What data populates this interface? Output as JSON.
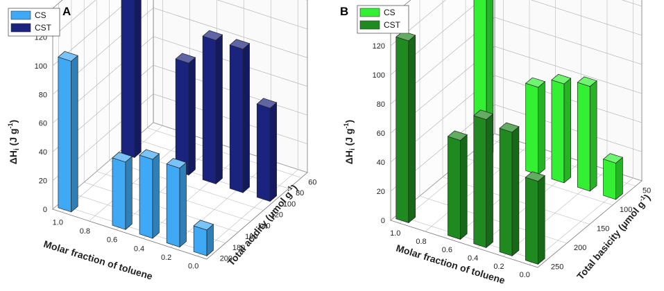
{
  "chart_data": [
    {
      "panel_label": "A",
      "type": "bar3d",
      "z_label": "ΔHi (J g-1)",
      "z_label_main": "ΔH",
      "z_label_sub": "i",
      "z_label_unit": " (J g",
      "z_label_sup": "-1",
      "z_label_close": ")",
      "x_label": "Molar fraction of toluene",
      "y_label": "Total acidity (μmol g-1)",
      "y_label_main": "Total acidity (μmol g",
      "y_label_sup": "-1",
      "y_label_close": ")",
      "x_ticks": [
        "1.0",
        "0.8",
        "0.6",
        "0.4",
        "0.2",
        "0.0"
      ],
      "x_tick_values": [
        1.0,
        0.8,
        0.6,
        0.4,
        0.2,
        0.0
      ],
      "y_ticks": [
        "200",
        "180",
        "160",
        "140",
        "120",
        "100",
        "80",
        "60"
      ],
      "y_tick_values": [
        200,
        180,
        160,
        140,
        120,
        100,
        80,
        60
      ],
      "z_ticks": [
        "0",
        "20",
        "40",
        "60",
        "80",
        "100",
        "120"
      ],
      "z_tick_values": [
        0,
        20,
        40,
        60,
        80,
        100,
        120
      ],
      "zlim": [
        0,
        140
      ],
      "legend": [
        {
          "name": "CS",
          "color": "#3fa9f5"
        },
        {
          "name": "CST",
          "color": "#1a237e"
        }
      ],
      "series": [
        {
          "name": "CS",
          "color": "#3fa9f5",
          "points": [
            {
              "x": 1.0,
              "y": 200,
              "value": 105
            },
            {
              "x": 0.6,
              "y": 200,
              "value": 47
            },
            {
              "x": 0.4,
              "y": 200,
              "value": 55
            },
            {
              "x": 0.2,
              "y": 200,
              "value": 55
            },
            {
              "x": 0.0,
              "y": 200,
              "value": 18
            }
          ]
        },
        {
          "name": "CST",
          "color": "#1a237e",
          "points": [
            {
              "x": 1.0,
              "y": 100,
              "value": 125
            },
            {
              "x": 0.6,
              "y": 100,
              "value": 78
            },
            {
              "x": 0.4,
              "y": 100,
              "value": 100
            },
            {
              "x": 0.2,
              "y": 100,
              "value": 100
            },
            {
              "x": 0.0,
              "y": 100,
              "value": 65
            }
          ]
        }
      ]
    },
    {
      "panel_label": "B",
      "type": "bar3d",
      "z_label": "ΔHi (J g-1)",
      "z_label_main": "ΔH",
      "z_label_sub": "i",
      "z_label_unit": " (J g",
      "z_label_sup": "-1",
      "z_label_close": ")",
      "x_label": "Molar fraction of toluene",
      "y_label": "Total basicity (μmol g-1)",
      "y_label_main": "Total basicity (μmol g",
      "y_label_sup": "-1",
      "y_label_close": ")",
      "x_ticks": [
        "1.0",
        "0.8",
        "0.6",
        "0.4",
        "0.2",
        "0.0"
      ],
      "x_tick_values": [
        1.0,
        0.8,
        0.6,
        0.4,
        0.2,
        0.0
      ],
      "y_ticks": [
        "250",
        "200",
        "150",
        "100",
        "50"
      ],
      "y_tick_values": [
        250,
        200,
        150,
        100,
        50
      ],
      "z_ticks": [
        "0",
        "20",
        "40",
        "60",
        "80",
        "100",
        "120"
      ],
      "z_tick_values": [
        0,
        20,
        40,
        60,
        80,
        100,
        120
      ],
      "zlim": [
        0,
        140
      ],
      "legend": [
        {
          "name": "CS",
          "color": "#33f033"
        },
        {
          "name": "CST",
          "color": "#1f8a1f"
        }
      ],
      "series": [
        {
          "name": "CST",
          "color": "#1f8a1f",
          "points": [
            {
              "x": 1.0,
              "y": 250,
              "value": 125
            },
            {
              "x": 0.6,
              "y": 250,
              "value": 68
            },
            {
              "x": 0.4,
              "y": 250,
              "value": 88
            },
            {
              "x": 0.2,
              "y": 250,
              "value": 85
            },
            {
              "x": 0.0,
              "y": 250,
              "value": 57
            }
          ]
        },
        {
          "name": "CS",
          "color": "#33f033",
          "points": [
            {
              "x": 1.0,
              "y": 80,
              "value": 115
            },
            {
              "x": 0.6,
              "y": 80,
              "value": 60
            },
            {
              "x": 0.4,
              "y": 80,
              "value": 68
            },
            {
              "x": 0.2,
              "y": 80,
              "value": 72
            },
            {
              "x": 0.0,
              "y": 80,
              "value": 25
            }
          ]
        }
      ]
    }
  ]
}
